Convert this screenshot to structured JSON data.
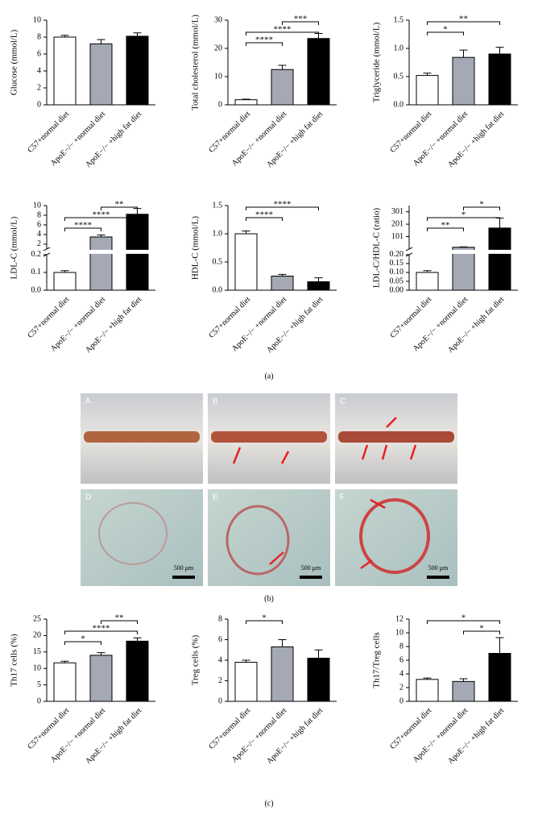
{
  "chart_data": [
    {
      "type": "bar",
      "ylabel": "Glucose (mmol/L)",
      "categories": [
        "C57+normal diet",
        "ApoE−/− +normal diet",
        "ApoE−/− +high fat diet"
      ],
      "values": [
        8.0,
        7.2,
        8.1
      ],
      "errors": [
        0.2,
        0.5,
        0.4
      ],
      "colors": [
        "#ffffff",
        "#a4a9b5",
        "#000000"
      ],
      "ylim": [
        0,
        10
      ],
      "yticks": [
        0,
        2,
        4,
        6,
        8,
        10
      ],
      "significance": []
    },
    {
      "type": "bar",
      "ylabel": "Total cholesterol (mmol/L)",
      "categories": [
        "C57+normal diet",
        "ApoE−/− +normal diet",
        "ApoE−/− +high fat diet"
      ],
      "values": [
        1.8,
        12.5,
        23.5
      ],
      "errors": [
        0.2,
        1.5,
        1.8
      ],
      "colors": [
        "#ffffff",
        "#a4a9b5",
        "#000000"
      ],
      "ylim": [
        0,
        30
      ],
      "yticks": [
        0,
        10,
        20,
        30
      ],
      "significance": [
        {
          "from": 1,
          "to": 2,
          "label": "***"
        },
        {
          "from": 0,
          "to": 2,
          "label": "****"
        },
        {
          "from": 0,
          "to": 1,
          "label": "****"
        }
      ]
    },
    {
      "type": "bar",
      "ylabel": "Triglyceride (mmol/L)",
      "categories": [
        "C57+normal diet",
        "ApoE−/− +normal diet",
        "ApoE−/− +high fat diet"
      ],
      "values": [
        0.52,
        0.84,
        0.9
      ],
      "errors": [
        0.04,
        0.13,
        0.12
      ],
      "colors": [
        "#ffffff",
        "#a4a9b5",
        "#000000"
      ],
      "ylim": [
        0,
        1.5
      ],
      "yticks": [
        {
          "value": 0,
          "label": "0.0"
        },
        {
          "value": 0.5,
          "label": "0.5"
        },
        {
          "value": 1,
          "label": "1.0"
        },
        {
          "value": 1.5,
          "label": "1.5"
        }
      ],
      "significance": [
        {
          "from": 0,
          "to": 2,
          "label": "**"
        },
        {
          "from": 0,
          "to": 1,
          "label": "*"
        }
      ]
    },
    {
      "type": "bar",
      "ylabel": "LDL-C (mmol/L)",
      "categories": [
        "C57+normal diet",
        "ApoE−/− +normal diet",
        "ApoE−/− +high fat diet"
      ],
      "values": [
        0.1,
        3.5,
        8.2
      ],
      "errors": [
        0.01,
        0.4,
        1.2
      ],
      "colors": [
        "#ffffff",
        "#a4a9b5",
        "#000000"
      ],
      "segments": [
        {
          "ylim": [
            0,
            0.2
          ],
          "yticks": [
            {
              "value": 0,
              "label": "0.0"
            },
            {
              "value": 0.1,
              "label": "0.1"
            },
            {
              "value": 0.2,
              "label": "0.2"
            }
          ]
        },
        {
          "ylim": [
            1,
            10
          ],
          "yticks": [
            2,
            4,
            6,
            8,
            10
          ]
        }
      ],
      "significance": [
        {
          "from": 1,
          "to": 2,
          "label": "**"
        },
        {
          "from": 0,
          "to": 2,
          "label": "****"
        },
        {
          "from": 0,
          "to": 1,
          "label": "****"
        }
      ]
    },
    {
      "type": "bar",
      "ylabel": "HDL-C (mmol/L)",
      "categories": [
        "C57+normal diet",
        "ApoE−/− +normal diet",
        "ApoE−/− +high fat diet"
      ],
      "values": [
        1.0,
        0.25,
        0.15
      ],
      "errors": [
        0.05,
        0.03,
        0.07
      ],
      "colors": [
        "#ffffff",
        "#a4a9b5",
        "#000000"
      ],
      "ylim": [
        0,
        1.5
      ],
      "yticks": [
        {
          "value": 0,
          "label": "0.0"
        },
        {
          "value": 0.5,
          "label": "0.5"
        },
        {
          "value": 1,
          "label": "1.0"
        },
        {
          "value": 1.5,
          "label": "1.5"
        }
      ],
      "significance": [
        {
          "from": 0,
          "to": 2,
          "label": "****"
        },
        {
          "from": 0,
          "to": 1,
          "label": "****"
        }
      ]
    },
    {
      "type": "bar",
      "ylabel": "LDL-C/HDL-C (ratio)",
      "categories": [
        "C57+normal diet",
        "ApoE−/− +normal diet",
        "ApoE−/− +high fat diet"
      ],
      "values": [
        0.1,
        15,
        170
      ],
      "errors": [
        0.01,
        3,
        80
      ],
      "colors": [
        "#ffffff",
        "#a4a9b5",
        "#000000"
      ],
      "segments": [
        {
          "ylim": [
            0,
            0.2
          ],
          "yticks": [
            {
              "value": 0,
              "label": "0.00"
            },
            {
              "value": 0.05,
              "label": "0.05"
            },
            {
              "value": 0.1,
              "label": "0.10"
            },
            {
              "value": 0.15,
              "label": "0.15"
            },
            {
              "value": 0.2,
              "label": "0.20"
            }
          ]
        },
        {
          "ylim": [
            1,
            351
          ],
          "yticks": [
            101,
            201,
            301
          ]
        }
      ],
      "significance": [
        {
          "from": 1,
          "to": 2,
          "label": "*"
        },
        {
          "from": 0,
          "to": 2,
          "label": "*"
        },
        {
          "from": 0,
          "to": 1,
          "label": "**"
        }
      ]
    },
    {
      "type": "bar",
      "ylabel": "Th17 cells (%)",
      "categories": [
        "C57+normal diet",
        "ApoE−/− +normal diet",
        "ApoE−/− +high fat diet"
      ],
      "values": [
        11.7,
        14.0,
        18.3
      ],
      "errors": [
        0.5,
        0.8,
        1.0
      ],
      "colors": [
        "#ffffff",
        "#a4a9b5",
        "#000000"
      ],
      "ylim": [
        0,
        25
      ],
      "yticks": [
        0,
        5,
        10,
        15,
        20,
        25
      ],
      "significance": [
        {
          "from": 1,
          "to": 2,
          "label": "**"
        },
        {
          "from": 0,
          "to": 2,
          "label": "****"
        },
        {
          "from": 0,
          "to": 1,
          "label": "*"
        }
      ]
    },
    {
      "type": "bar",
      "ylabel": "Treg cells (%)",
      "categories": [
        "C57+normal diet",
        "ApoE−/− +normal diet",
        "ApoE−/− +high fat diet"
      ],
      "values": [
        3.8,
        5.3,
        4.2
      ],
      "errors": [
        0.2,
        0.7,
        0.8
      ],
      "colors": [
        "#ffffff",
        "#a4a9b5",
        "#000000"
      ],
      "ylim": [
        0,
        8
      ],
      "yticks": [
        0,
        2,
        4,
        6,
        8
      ],
      "significance": [
        {
          "from": 0,
          "to": 1,
          "label": "*"
        }
      ]
    },
    {
      "type": "bar",
      "ylabel": "Th17/Treg cells",
      "categories": [
        "C57+normal diet",
        "ApoE−/− +normal diet",
        "ApoE−/− +high fat diet"
      ],
      "values": [
        3.2,
        2.9,
        7.0
      ],
      "errors": [
        0.2,
        0.4,
        2.3
      ],
      "colors": [
        "#ffffff",
        "#a4a9b5",
        "#000000"
      ],
      "ylim": [
        0,
        12
      ],
      "yticks": [
        0,
        2,
        4,
        6,
        8,
        10,
        12
      ],
      "significance": [
        {
          "from": 0,
          "to": 2,
          "label": "*"
        },
        {
          "from": 1,
          "to": 2,
          "label": "*"
        }
      ]
    }
  ],
  "panels": [
    "(a)",
    "(b)",
    "(c)"
  ],
  "micrographs": {
    "labels": [
      "A",
      "B",
      "C",
      "D",
      "E",
      "F"
    ],
    "scale_bar": "500 μm"
  }
}
